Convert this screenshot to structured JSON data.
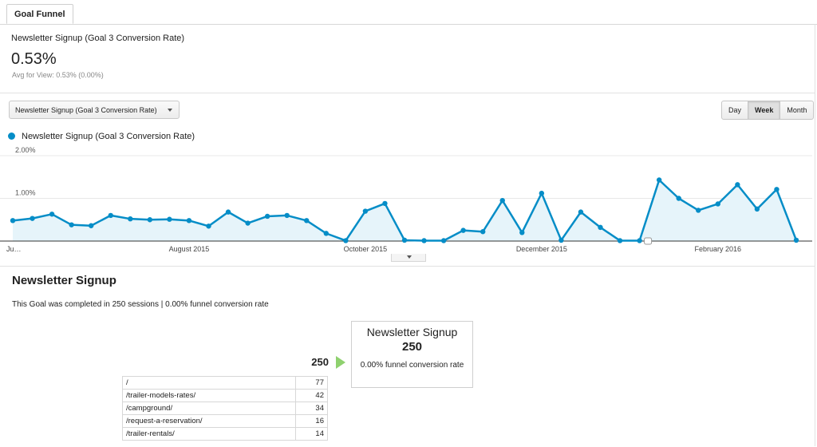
{
  "tab": {
    "label": "Goal Funnel"
  },
  "metric": {
    "label": "Newsletter Signup (Goal 3 Conversion Rate)",
    "value": "0.53%",
    "avg": "Avg for View: 0.53% (0.00%)"
  },
  "controls": {
    "select_value": "Newsletter Signup (Goal 3 Conversion Rate)",
    "granularity": [
      "Day",
      "Week",
      "Month"
    ],
    "granularity_selected": "Week"
  },
  "legend": {
    "label": "Newsletter Signup (Goal 3 Conversion Rate)",
    "color": "#058dc7"
  },
  "chart_data": {
    "type": "area",
    "series": [
      {
        "name": "Newsletter Signup (Goal 3 Conversion Rate)",
        "values": [
          0.48,
          0.53,
          0.63,
          0.38,
          0.36,
          0.6,
          0.52,
          0.5,
          0.51,
          0.48,
          0.35,
          0.68,
          0.42,
          0.58,
          0.6,
          0.48,
          0.18,
          0.01,
          0.7,
          0.88,
          0.02,
          0.01,
          0.01,
          0.25,
          0.22,
          0.95,
          0.2,
          1.12,
          0.02,
          0.68,
          0.32,
          0.01,
          0.01,
          1.43,
          1.0,
          0.72,
          0.87,
          1.32,
          0.75,
          1.21,
          0.02
        ]
      }
    ],
    "x_tick_labels": [
      "Ju…",
      "August 2015",
      "October 2015",
      "December 2015",
      "February 2016"
    ],
    "x_tick_index": [
      0,
      9,
      18,
      27,
      36
    ],
    "y_tick_labels": [
      "1.00%",
      "2.00%"
    ],
    "y_ticks": [
      1,
      2
    ],
    "ylim": [
      0,
      2
    ],
    "annotation_index": 32,
    "grid": true,
    "colors": {
      "line": "#058dc7",
      "fill": "#e6f4fa"
    }
  },
  "funnel": {
    "heading": "Newsletter Signup",
    "summary": "This Goal was completed in 250 sessions | 0.00% funnel conversion rate",
    "entry_count": "250",
    "goal": {
      "name": "Newsletter Signup",
      "count": "250",
      "rate": "0.00% funnel conversion rate"
    },
    "entries": [
      {
        "path": "/",
        "count": "77"
      },
      {
        "path": "/trailer-models-rates/",
        "count": "42"
      },
      {
        "path": "/campground/",
        "count": "34"
      },
      {
        "path": "/request-a-reservation/",
        "count": "16"
      },
      {
        "path": "/trailer-rentals/",
        "count": "14"
      }
    ]
  }
}
